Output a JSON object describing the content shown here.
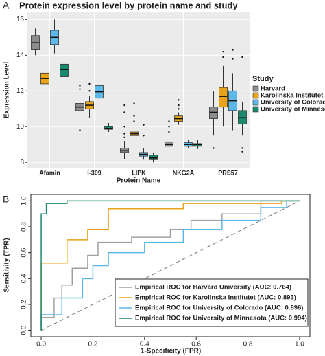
{
  "chart_data": [
    {
      "type": "boxplot",
      "panel_label": "A",
      "title": "Protein expression level by protein name and study",
      "x_label": "Protein Name",
      "y_label": "Expression Level",
      "legend_title": "Study",
      "categories": [
        "Afamin",
        "I-309",
        "LIPK",
        "NKG2A",
        "PRS57"
      ],
      "ylim": [
        7.7,
        16.4
      ],
      "yticks": [
        8,
        10,
        12,
        14,
        16
      ],
      "grid": true,
      "series": [
        {
          "name": "Harvard",
          "color": "#8c8c8c",
          "values": [
            {
              "min": 14.0,
              "q1": 14.3,
              "median": 14.7,
              "q3": 15.1,
              "max": 15.5
            },
            {
              "min": 10.4,
              "q1": 10.9,
              "median": 11.1,
              "q3": 11.3,
              "max": 11.8,
              "outliers": [
                12.3,
                12.1,
                9.8
              ]
            },
            {
              "min": 8.2,
              "q1": 8.55,
              "median": 8.65,
              "q3": 8.8,
              "max": 9.2,
              "outliers": [
                9.4,
                9.6,
                10.0,
                10.8,
                11.2
              ]
            },
            {
              "min": 8.6,
              "q1": 8.9,
              "median": 9.0,
              "q3": 9.15,
              "max": 9.4,
              "outliers": [
                9.7,
                10.0,
                10.3
              ]
            },
            {
              "min": 9.5,
              "q1": 10.45,
              "median": 10.8,
              "q3": 11.1,
              "max": 12.0,
              "outliers": [
                8.8
              ]
            }
          ]
        },
        {
          "name": "Karolinska Institutet",
          "color": "#e8a317",
          "values": [
            {
              "min": 11.8,
              "q1": 12.4,
              "median": 12.7,
              "q3": 13.0,
              "max": 13.4
            },
            {
              "min": 10.5,
              "q1": 11.0,
              "median": 11.2,
              "q3": 11.4,
              "max": 11.7,
              "outliers": [
                12.4,
                12.0
              ]
            },
            {
              "min": 9.2,
              "q1": 9.5,
              "median": 9.6,
              "q3": 9.7,
              "max": 10.0,
              "outliers": [
                10.3,
                10.6,
                11.3
              ]
            },
            {
              "min": 10.1,
              "q1": 10.3,
              "median": 10.45,
              "q3": 10.6,
              "max": 10.8,
              "outliers": [
                11.0,
                11.2,
                11.5
              ]
            },
            {
              "min": 10.0,
              "q1": 11.1,
              "median": 11.7,
              "q3": 12.2,
              "max": 13.4,
              "outliers": [
                14.2,
                13.9
              ]
            }
          ]
        },
        {
          "name": "University of Colorado",
          "color": "#5bb8e8",
          "values": [
            {
              "min": 14.1,
              "q1": 14.6,
              "median": 15.0,
              "q3": 15.4,
              "max": 16.0
            },
            {
              "min": 11.0,
              "q1": 11.6,
              "median": 11.95,
              "q3": 12.3,
              "max": 12.8
            },
            {
              "min": 8.15,
              "q1": 8.35,
              "median": 8.45,
              "q3": 8.55,
              "max": 8.8,
              "outliers": [
                9.5,
                10.1
              ]
            },
            {
              "min": 8.8,
              "q1": 8.9,
              "median": 9.0,
              "q3": 9.1,
              "max": 9.25
            },
            {
              "min": 9.8,
              "q1": 10.9,
              "median": 11.45,
              "q3": 12.0,
              "max": 13.0,
              "outliers": [
                14.3,
                13.8
              ]
            }
          ]
        },
        {
          "name": "University of Minnesota",
          "color": "#1a8a6e",
          "values": [
            {
              "min": 12.4,
              "q1": 12.8,
              "median": 13.2,
              "q3": 13.5,
              "max": 13.9
            },
            {
              "min": 9.7,
              "q1": 9.85,
              "median": 9.9,
              "q3": 10.0,
              "max": 10.2
            },
            {
              "min": 8.0,
              "q1": 8.15,
              "median": 8.25,
              "q3": 8.4,
              "max": 8.55
            },
            {
              "min": 8.75,
              "q1": 8.9,
              "median": 9.0,
              "q3": 9.05,
              "max": 9.25
            },
            {
              "min": 9.5,
              "q1": 10.15,
              "median": 10.5,
              "q3": 10.9,
              "max": 11.4,
              "outliers": [
                13.9,
                8.8,
                8.6
              ]
            }
          ]
        }
      ]
    },
    {
      "type": "line",
      "panel_label": "B",
      "x_label": "1-Specificity (FPR)",
      "y_label": "Sensitivity (TPR)",
      "xlim": [
        -0.04,
        1.04
      ],
      "ylim": [
        -0.05,
        1.05
      ],
      "xticks": [
        {
          "value": 0,
          "label": "0.0"
        },
        0.2,
        0.4,
        0.6,
        0.8,
        {
          "value": 1,
          "label": "1.0"
        }
      ],
      "yticks": [
        {
          "value": 0,
          "label": "0.0"
        },
        0.2,
        0.4,
        0.6,
        0.8,
        {
          "value": 1,
          "label": "1.0"
        }
      ],
      "legend": "bottom-right",
      "series": [
        {
          "name": "Empirical ROC for Harvard University (AUC: 0.764)",
          "color": "#a0a0a0",
          "x": [
            0,
            0,
            0.05,
            0.05,
            0.08,
            0.08,
            0.12,
            0.12,
            0.18,
            0.18,
            0.22,
            0.22,
            0.35,
            0.35,
            0.5,
            0.5,
            0.58,
            0.58,
            0.7,
            0.7,
            0.85,
            0.85,
            1
          ],
          "values": [
            0,
            0.1,
            0.1,
            0.25,
            0.25,
            0.35,
            0.35,
            0.48,
            0.48,
            0.58,
            0.58,
            0.68,
            0.68,
            0.72,
            0.72,
            0.78,
            0.78,
            0.85,
            0.85,
            0.9,
            0.9,
            1,
            1
          ]
        },
        {
          "name": "Empirical ROC for Karolinska Institutet (AUC: 0.893)",
          "color": "#e8a317",
          "x": [
            0,
            0,
            0.1,
            0.1,
            0.18,
            0.18,
            0.26,
            0.26,
            0.55,
            0.55,
            0.93,
            0.93,
            1
          ],
          "values": [
            0,
            0.52,
            0.52,
            0.7,
            0.7,
            0.78,
            0.78,
            0.94,
            0.94,
            0.98,
            0.98,
            1,
            1
          ]
        },
        {
          "name": "Empirical ROC for University of Colorado (AUC: 0.696)",
          "color": "#5bb8e8",
          "x": [
            0,
            0,
            0.08,
            0.08,
            0.16,
            0.16,
            0.2,
            0.2,
            0.26,
            0.26,
            0.4,
            0.4,
            0.55,
            0.55,
            0.7,
            0.7,
            0.85,
            0.85,
            0.95,
            0.95,
            1
          ],
          "values": [
            0,
            0.12,
            0.12,
            0.25,
            0.25,
            0.4,
            0.4,
            0.5,
            0.5,
            0.6,
            0.6,
            0.68,
            0.68,
            0.78,
            0.78,
            0.85,
            0.85,
            0.95,
            0.95,
            1,
            1
          ]
        },
        {
          "name": "Empirical ROC for University of Minnesota (AUC: 0.994)",
          "color": "#1a8a6e",
          "x": [
            0,
            0,
            0.02,
            0.02,
            0.1,
            0.1,
            1
          ],
          "values": [
            0,
            0.9,
            0.9,
            0.98,
            0.98,
            1,
            1
          ]
        }
      ]
    }
  ]
}
